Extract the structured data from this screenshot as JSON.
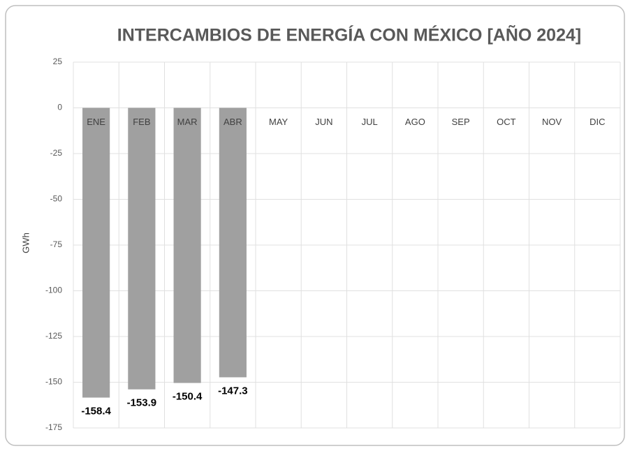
{
  "chart_data": {
    "type": "bar",
    "title": "INTERCAMBIOS DE ENERGÍA CON MÉXICO [AÑO 2024]",
    "y_label": "GWh",
    "categories": [
      "ENE",
      "FEB",
      "MAR",
      "ABR",
      "MAY",
      "JUN",
      "JUL",
      "AGO",
      "SEP",
      "OCT",
      "NOV",
      "DIC"
    ],
    "values": [
      -158.4,
      -153.9,
      -150.4,
      -147.3,
      null,
      null,
      null,
      null,
      null,
      null,
      null,
      null
    ],
    "color": "#a0a0a0",
    "ylim": [
      -175,
      25
    ],
    "yticks": [
      -175,
      -150,
      -125,
      -100,
      -75,
      -50,
      -25,
      0,
      25
    ],
    "grid": true
  }
}
